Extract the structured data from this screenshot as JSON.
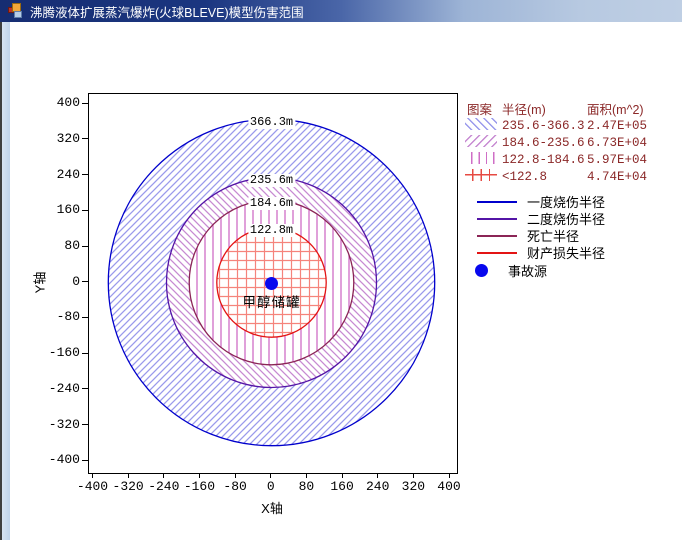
{
  "window": {
    "title": "沸腾液体扩展蒸汽爆炸(火球BLEVE)模型伤害范围",
    "icon": "form-icon"
  },
  "axes": {
    "x": {
      "title": "X轴",
      "ticks": [
        "-400",
        "-320",
        "-240",
        "-160",
        "-80",
        "0",
        "80",
        "160",
        "240",
        "320",
        "400"
      ]
    },
    "y": {
      "title": "Y轴",
      "ticks": [
        "400",
        "320",
        "240",
        "160",
        "80",
        "0",
        "-80",
        "-160",
        "-240",
        "-320",
        "-400"
      ]
    }
  },
  "plot": {
    "center_label": "甲醇储罐",
    "source_dot_color": "#0808ee"
  },
  "legend": {
    "headers": [
      "图案",
      "半径(m)",
      "面积(m^2)"
    ],
    "text_color": "#8b2828",
    "pattern_rows": [
      {
        "swatch": "hatch-forward",
        "swatch_color": "#9a9aec",
        "radius": "235.6-366.3",
        "area": "2.47E+05"
      },
      {
        "swatch": "hatch-back",
        "swatch_color": "#c78ad2",
        "radius": "184.6-235.6",
        "area": "6.73E+04"
      },
      {
        "swatch": "vertical-lines",
        "swatch_color": "#cf6ec6",
        "radius": "122.8-184.6",
        "area": "5.97E+04"
      },
      {
        "swatch": "cross-grid",
        "swatch_color": "#e64a42",
        "radius": "<122.8",
        "area": "4.74E+04"
      }
    ],
    "line_rows": [
      {
        "color": "#0000cc",
        "label": "一度烧伤半径"
      },
      {
        "color": "#5314a6",
        "label": "二度烧伤半径"
      },
      {
        "color": "#8b2556",
        "label": "死亡半径"
      },
      {
        "color": "#e31414",
        "label": "财产损失半径"
      }
    ],
    "source_row": {
      "label": "事故源",
      "marker_color": "#0808ee"
    }
  },
  "chart_data": {
    "type": "concentric_damage_zones",
    "title": "沸腾液体扩展蒸汽爆炸(火球BLEVE)模型伤害范围",
    "xlabel": "X轴",
    "ylabel": "Y轴",
    "xlim": [
      -410,
      410
    ],
    "ylim": [
      -425,
      425
    ],
    "grid": false,
    "center": {
      "x": 0,
      "y": 0,
      "label": "甲醇储罐",
      "marker": "filled-circle",
      "marker_color": "#0808ee"
    },
    "rings": [
      {
        "label": "366.3m",
        "radius_m": 366.3,
        "band_m": "235.6-366.3",
        "area_m2": 247000,
        "zone": "一度烧伤半径",
        "outline_color": "#0000cc",
        "hatch": "/",
        "hatch_color": "#9a9aec"
      },
      {
        "label": "235.6m",
        "radius_m": 235.6,
        "band_m": "184.6-235.6",
        "area_m2": 67300,
        "zone": "二度烧伤半径",
        "outline_color": "#5314a6",
        "hatch": "\\",
        "hatch_color": "#c78ad2"
      },
      {
        "label": "184.6m",
        "radius_m": 184.6,
        "band_m": "122.8-184.6",
        "area_m2": 59700,
        "zone": "死亡半径",
        "outline_color": "#8b2556",
        "hatch": "|",
        "hatch_color": "#cf6ec6"
      },
      {
        "label": "122.8m",
        "radius_m": 122.8,
        "band_m": "<122.8",
        "area_m2": 47400,
        "zone": "财产损失半径",
        "outline_color": "#e31414",
        "hatch": "+",
        "hatch_color": "#f5837b"
      }
    ]
  }
}
